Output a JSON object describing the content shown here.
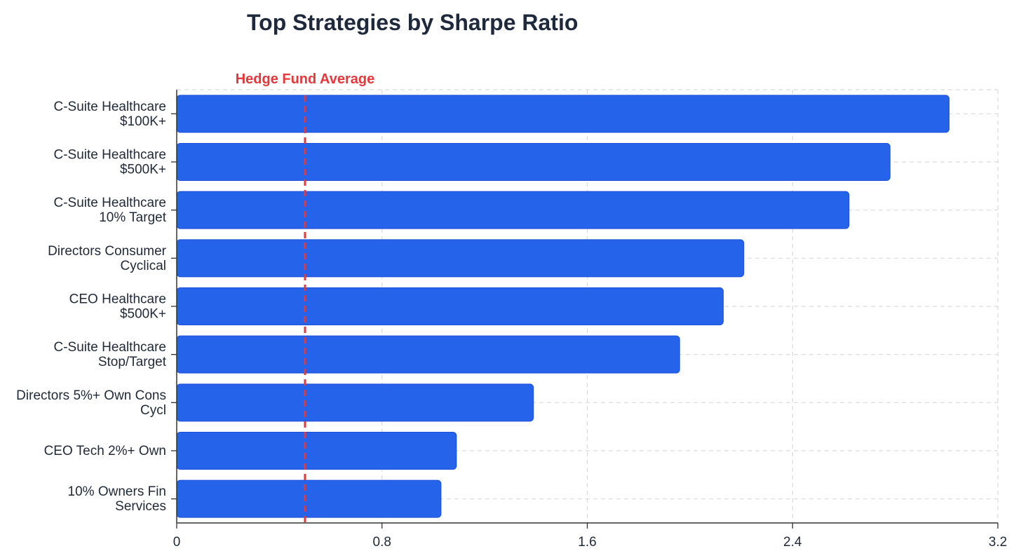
{
  "chart_data": {
    "type": "bar",
    "orientation": "horizontal",
    "title": "Top Strategies by Sharpe Ratio",
    "xlabel": "",
    "ylabel": "",
    "categories": [
      [
        "C-Suite Healthcare",
        "$100K+"
      ],
      [
        "C-Suite Healthcare",
        "$500K+"
      ],
      [
        "C-Suite Healthcare",
        "10% Target"
      ],
      [
        "Directors Consumer",
        "Cyclical"
      ],
      [
        "CEO Healthcare",
        "$500K+"
      ],
      [
        "C-Suite Healthcare",
        "Stop/Target"
      ],
      [
        "Directors 5%+ Own Cons",
        "Cycl"
      ],
      [
        "CEO Tech 2%+ Own"
      ],
      [
        "10% Owners Fin",
        "Services"
      ]
    ],
    "values": [
      3.01,
      2.78,
      2.62,
      2.21,
      2.13,
      1.96,
      1.39,
      1.09,
      1.03
    ],
    "xlim": [
      0,
      3.2
    ],
    "xticks": [
      0,
      0.8,
      1.6,
      2.4,
      3.2
    ],
    "xtick_labels": [
      "0",
      "0.8",
      "1.6",
      "2.4",
      "3.2"
    ],
    "grid": true,
    "reference_line": {
      "label": "Hedge Fund Average",
      "value": 0.5,
      "color": "#e5383b"
    },
    "bar_color": "#2563eb",
    "bar_stroke": "#1d4ed8"
  }
}
